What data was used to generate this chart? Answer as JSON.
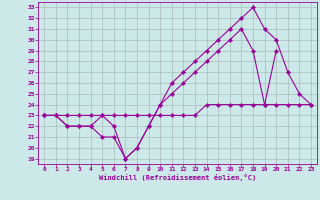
{
  "xlabel": "Windchill (Refroidissement éolien,°C)",
  "bg_color": "#cce8e8",
  "line_color": "#990099",
  "grid_color": "#aabbbb",
  "xlim": [
    -0.5,
    23.5
  ],
  "ylim": [
    18.5,
    33.5
  ],
  "xticks": [
    0,
    1,
    2,
    3,
    4,
    5,
    6,
    7,
    8,
    9,
    10,
    11,
    12,
    13,
    14,
    15,
    16,
    17,
    18,
    19,
    20,
    21,
    22,
    23
  ],
  "yticks": [
    19,
    20,
    21,
    22,
    23,
    24,
    25,
    26,
    27,
    28,
    29,
    30,
    31,
    32,
    33
  ],
  "line1_x": [
    0,
    1,
    2,
    3,
    4,
    5,
    6,
    7,
    8,
    9,
    10,
    11,
    12,
    13,
    14,
    15,
    16,
    17,
    18,
    19,
    20
  ],
  "line1_y": [
    23,
    23,
    22,
    22,
    22,
    21,
    21,
    19,
    20,
    22,
    24,
    25,
    26,
    27,
    28,
    29,
    30,
    31,
    29,
    24,
    29
  ],
  "line2_x": [
    0,
    1,
    2,
    3,
    4,
    5,
    6,
    7,
    8,
    9,
    10,
    11,
    12,
    13,
    14,
    15,
    16,
    17,
    18,
    19,
    20,
    21,
    22,
    23
  ],
  "line2_y": [
    23,
    23,
    22,
    22,
    22,
    23,
    22,
    19,
    20,
    22,
    24,
    26,
    27,
    28,
    29,
    30,
    31,
    32,
    33,
    31,
    30,
    27,
    25,
    24
  ],
  "line3_x": [
    0,
    1,
    2,
    3,
    4,
    5,
    6,
    7,
    8,
    9,
    10,
    11,
    12,
    13,
    14,
    15,
    16,
    17,
    18,
    19,
    20,
    21,
    22,
    23
  ],
  "line3_y": [
    23,
    23,
    23,
    23,
    23,
    23,
    23,
    23,
    23,
    23,
    23,
    23,
    23,
    23,
    24,
    24,
    24,
    24,
    24,
    24,
    24,
    24,
    24,
    24
  ]
}
